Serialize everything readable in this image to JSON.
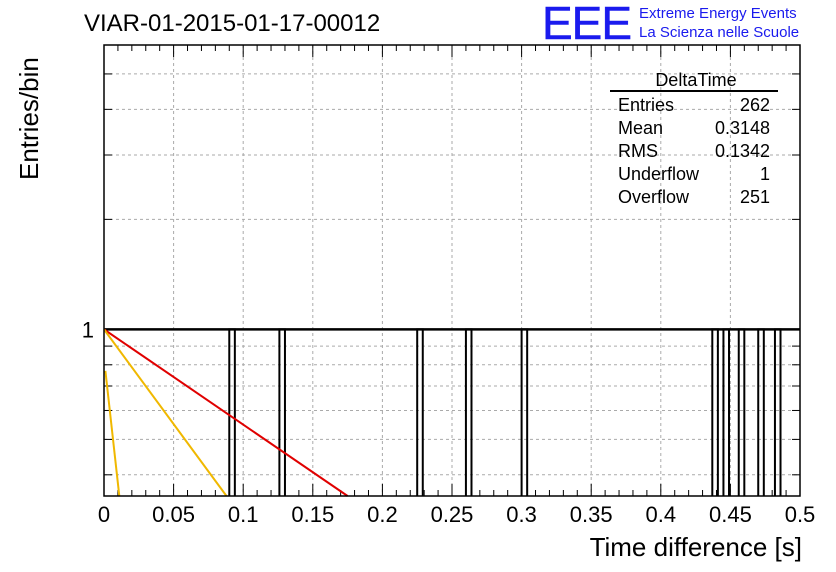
{
  "run_title": "VIAR-01-2015-01-17-00012",
  "logo": {
    "mark": "EEE",
    "line1": "Extreme Energy Events",
    "line2": "La Scienza nelle Scuole"
  },
  "stats": {
    "title": "DeltaTime",
    "rows": [
      {
        "label": "Entries",
        "value": "262"
      },
      {
        "label": "Mean",
        "value": "0.3148"
      },
      {
        "label": "RMS",
        "value": "0.1342"
      },
      {
        "label": "Underflow",
        "value": "1"
      },
      {
        "label": "Overflow",
        "value": "251"
      }
    ]
  },
  "colors": {
    "histogram": "#000000",
    "fit_red": "#e00000",
    "fit_gold": "#f0b800",
    "grid": "#aaaaaa"
  },
  "chart_data": {
    "type": "histogram",
    "title": "VIAR-01-2015-01-17-00012",
    "xlabel": "Time difference [s]",
    "ylabel": "Entries/bin",
    "xlim": [
      0,
      0.5
    ],
    "y_scale": "log",
    "ylim": [
      0.35,
      6
    ],
    "grid": true,
    "x_ticks": [
      "0",
      "0.05",
      "0.1",
      "0.15",
      "0.2",
      "0.25",
      "0.3",
      "0.35",
      "0.4",
      "0.45",
      "0.5"
    ],
    "y_tick_labels": [
      "1"
    ],
    "bin_width": 0.004,
    "filled_bins": [
      {
        "x": 0.09,
        "y": 1
      },
      {
        "x": 0.126,
        "y": 1
      },
      {
        "x": 0.225,
        "y": 1
      },
      {
        "x": 0.26,
        "y": 1
      },
      {
        "x": 0.3,
        "y": 1
      },
      {
        "x": 0.437,
        "y": 1
      },
      {
        "x": 0.445,
        "y": 1
      },
      {
        "x": 0.456,
        "y": 1
      },
      {
        "x": 0.47,
        "y": 1
      },
      {
        "x": 0.482,
        "y": 1
      }
    ],
    "baseline_level": 1,
    "fit_curves": [
      {
        "color": "red",
        "points": [
          [
            0,
            1
          ],
          [
            0.175,
            0.35
          ]
        ]
      },
      {
        "color": "gold",
        "points": [
          [
            0,
            1
          ],
          [
            0.088,
            0.35
          ]
        ]
      },
      {
        "color": "gold",
        "points": [
          [
            0.001,
            0.77
          ],
          [
            0.011,
            0.35
          ]
        ]
      }
    ],
    "legend": "top-right"
  }
}
